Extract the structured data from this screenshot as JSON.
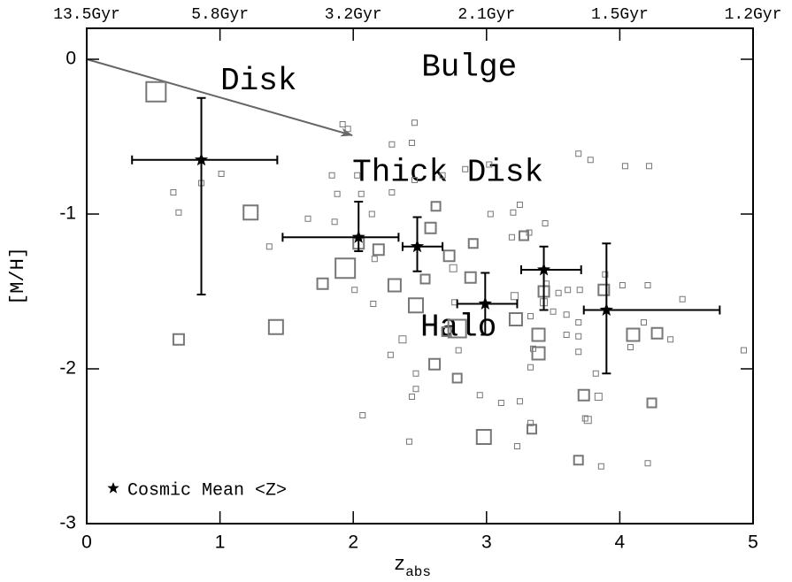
{
  "chart_data": {
    "type": "scatter",
    "xlabel": "z",
    "xlabel_sub": "abs",
    "ylabel": "[M/H]",
    "xlim": [
      0,
      5
    ],
    "ylim": [
      -3,
      0.2
    ],
    "xticks": [
      0,
      1,
      2,
      3,
      4,
      5
    ],
    "yticks": [
      0,
      -1,
      -2,
      -3
    ],
    "x2ticks": [
      {
        "value": 0,
        "label": "13.5Gyr"
      },
      {
        "value": 1,
        "label": "5.8Gyr"
      },
      {
        "value": 2,
        "label": "3.2Gyr"
      },
      {
        "value": 3,
        "label": "2.1Gyr"
      },
      {
        "value": 4,
        "label": "1.5Gyr"
      },
      {
        "value": 5,
        "label": "1.2Gyr"
      }
    ],
    "annotations": [
      {
        "text": "Bulge",
        "x": 2.87,
        "y": -0.05
      },
      {
        "text": "Disk",
        "x": 1.29,
        "y": -0.14,
        "color": "#777777"
      },
      {
        "text": "Thick Disk",
        "x": 2.71,
        "y": -0.73
      },
      {
        "text": "Halo",
        "x": 2.79,
        "y": -1.73
      }
    ],
    "squares": {
      "color": "#777777",
      "x": [
        0.52,
        1.23,
        1.94,
        1.42,
        0.69,
        2.78,
        2.98,
        2.47,
        2.58,
        2.31,
        2.61,
        3.39,
        3.39,
        3.22,
        4.1,
        3.88,
        4.28,
        4.24,
        3.73,
        3.34,
        3.69,
        3.43,
        3.28,
        2.88,
        2.72,
        2.78,
        1.77,
        2.04,
        2.19,
        2.54,
        2.7,
        2.9,
        2.62,
        2.75,
        2.37,
        3.21,
        3.43,
        3.84,
        3.76,
        1.92,
        1.96,
        1.84,
        1.88,
        2.03,
        2.06,
        2.14,
        1.86,
        1.66,
        2.29,
        2.44,
        2.46,
        2.29,
        2.46,
        2.67,
        2.84,
        3.02,
        3.03,
        3.2,
        3.19,
        3.25,
        3.44,
        3.32,
        0.65,
        0.69,
        0.86,
        1.01,
        1.37,
        2.16,
        2.15,
        2.01,
        2.28,
        2.47,
        2.47,
        2.44,
        2.42,
        2.07,
        2.79,
        2.76,
        2.95,
        3.11,
        3.23,
        3.33,
        3.35,
        3.6,
        3.69,
        3.69,
        3.69,
        3.89,
        3.7,
        3.6,
        3.61,
        3.45,
        3.54,
        3.5,
        3.33,
        3.33,
        3.69,
        3.78,
        4.04,
        4.22,
        4.08,
        4.18,
        4.38,
        4.47,
        4.21,
        4.02,
        3.86,
        4.21,
        3.82,
        3.74,
        4.93,
        3.25
      ],
      "values": [
        -0.21,
        -0.99,
        -1.35,
        -1.73,
        -1.81,
        -1.74,
        -2.44,
        -1.59,
        -1.09,
        -1.46,
        -1.97,
        -1.9,
        -1.78,
        -1.68,
        -1.78,
        -1.49,
        -1.77,
        -2.22,
        -2.17,
        -2.39,
        -2.59,
        -1.5,
        -1.14,
        -1.41,
        -1.27,
        -2.06,
        -1.45,
        -1.19,
        -1.23,
        -1.42,
        -1.76,
        -1.19,
        -0.95,
        -1.35,
        -1.81,
        -1.53,
        -1.57,
        -2.18,
        -2.33,
        -0.42,
        -0.45,
        -0.75,
        -0.87,
        -0.75,
        -0.87,
        -1.0,
        -1.05,
        -1.03,
        -0.55,
        -0.54,
        -0.41,
        -0.86,
        -0.78,
        -0.75,
        -0.71,
        -0.68,
        -1.0,
        -0.99,
        -1.15,
        -0.94,
        -1.06,
        -1.12,
        -0.86,
        -0.99,
        -0.8,
        -0.74,
        -1.21,
        -1.29,
        -1.58,
        -1.49,
        -1.91,
        -2.03,
        -2.13,
        -2.18,
        -2.47,
        -2.3,
        -1.88,
        -1.57,
        -2.17,
        -2.22,
        -2.5,
        -2.35,
        -1.87,
        -1.78,
        -1.7,
        -1.79,
        -1.89,
        -1.39,
        -1.49,
        -1.65,
        -1.49,
        -1.45,
        -1.51,
        -1.63,
        -1.66,
        -1.99,
        -0.61,
        -0.65,
        -0.69,
        -0.69,
        -1.86,
        -1.7,
        -1.81,
        -1.55,
        -1.46,
        -1.46,
        -2.63,
        -2.61,
        -2.03,
        -2.32,
        -1.88,
        -2.21
      ],
      "sizes": [
        22,
        16,
        22,
        16,
        12,
        20,
        16,
        16,
        12,
        14,
        12,
        14,
        14,
        14,
        14,
        12,
        12,
        10,
        12,
        10,
        10,
        12,
        10,
        12,
        12,
        10,
        12,
        12,
        12,
        10,
        10,
        10,
        10,
        8,
        8,
        8,
        8,
        8,
        8,
        6,
        6,
        6,
        6,
        6,
        6,
        6,
        6,
        6,
        6,
        6,
        6,
        6,
        6,
        6,
        6,
        6,
        6,
        6,
        6,
        6,
        6,
        6,
        6,
        6,
        6,
        6,
        6,
        6,
        6,
        6,
        6,
        6,
        6,
        6,
        6,
        6,
        6,
        6,
        6,
        6,
        6,
        6,
        6,
        6,
        6,
        6,
        6,
        6,
        6,
        6,
        6,
        6,
        6,
        6,
        6,
        6,
        6,
        6,
        6,
        6,
        6,
        6,
        6,
        6,
        6,
        6,
        6,
        6,
        6,
        6,
        6,
        6
      ]
    },
    "series": [
      {
        "name": "Cosmic Mean <Z>",
        "color": "#000000",
        "x": [
          0.86,
          2.04,
          2.48,
          2.99,
          3.43,
          3.9
        ],
        "values": [
          -0.65,
          -1.15,
          -1.21,
          -1.58,
          -1.36,
          -1.62
        ],
        "x_low": [
          0.34,
          1.47,
          2.37,
          2.78,
          3.26,
          3.73
        ],
        "x_high": [
          1.43,
          2.34,
          2.67,
          3.23,
          3.71,
          4.75
        ],
        "y_low": [
          -1.52,
          -1.24,
          -1.37,
          -1.78,
          -1.62,
          -2.03
        ],
        "y_high": [
          -0.25,
          -0.92,
          -1.02,
          -1.38,
          -1.21,
          -1.19
        ]
      }
    ],
    "legend": "bottom-left"
  }
}
